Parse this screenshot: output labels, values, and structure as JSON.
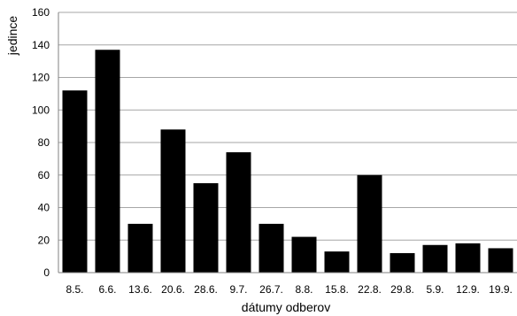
{
  "chart_data": {
    "type": "bar",
    "categories": [
      "8.5.",
      "6.6.",
      "13.6.",
      "20.6.",
      "28.6.",
      "9.7.",
      "26.7.",
      "8.8.",
      "15.8.",
      "22.8.",
      "29.8.",
      "5.9.",
      "12.9.",
      "19.9."
    ],
    "values": [
      112,
      137,
      30,
      88,
      55,
      74,
      30,
      22,
      13,
      60,
      12,
      17,
      18,
      15
    ],
    "title": "",
    "xlabel": "dátumy odberov",
    "ylabel": "jedince",
    "ylim": [
      0,
      160
    ],
    "yticks": [
      0,
      20,
      40,
      60,
      80,
      100,
      120,
      140,
      160
    ],
    "grid": true,
    "legend": "none",
    "colors": {
      "bar": "#000000",
      "grid": "#a6a6a6",
      "axis": "#808080"
    }
  }
}
